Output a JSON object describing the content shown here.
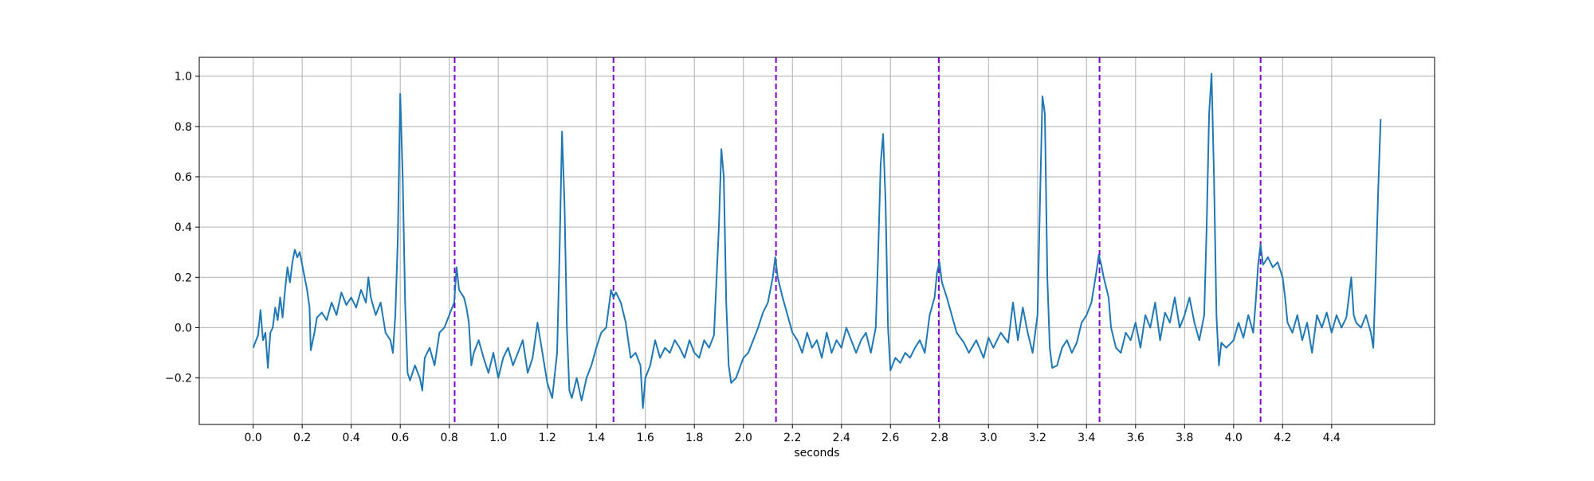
{
  "chart_data": {
    "type": "line",
    "title": "",
    "xlabel": "seconds",
    "ylabel": "",
    "xlim": [
      -0.22,
      4.82
    ],
    "ylim": [
      -0.385,
      1.075
    ],
    "x_ticks": [
      0.0,
      0.2,
      0.4,
      0.6,
      0.8,
      1.0,
      1.2,
      1.4,
      1.6,
      1.8,
      2.0,
      2.2,
      2.4,
      2.6,
      2.8,
      3.0,
      3.2,
      3.4,
      3.6,
      3.8,
      4.0,
      4.2,
      4.4
    ],
    "x_tick_labels": [
      "0.0",
      "0.2",
      "0.4",
      "0.6",
      "0.8",
      "1.0",
      "1.2",
      "1.4",
      "1.6",
      "1.8",
      "2.0",
      "2.2",
      "2.4",
      "2.6",
      "2.8",
      "3.0",
      "3.2",
      "3.4",
      "3.6",
      "3.8",
      "4.0",
      "4.2",
      "4.4"
    ],
    "y_ticks": [
      -0.2,
      0.0,
      0.2,
      0.4,
      0.6,
      0.8,
      1.0
    ],
    "y_tick_labels": [
      "−0.2",
      "0.0",
      "0.2",
      "0.4",
      "0.6",
      "0.8",
      "1.0"
    ],
    "grid": true,
    "legend": "none",
    "series": [
      {
        "color": "#1f77b4",
        "points": [
          [
            0.0,
            -0.08
          ],
          [
            0.02,
            -0.03
          ],
          [
            0.03,
            0.07
          ],
          [
            0.04,
            -0.05
          ],
          [
            0.05,
            -0.02
          ],
          [
            0.06,
            -0.16
          ],
          [
            0.07,
            -0.02
          ],
          [
            0.08,
            0.0
          ],
          [
            0.09,
            0.08
          ],
          [
            0.1,
            0.03
          ],
          [
            0.11,
            0.12
          ],
          [
            0.12,
            0.04
          ],
          [
            0.13,
            0.15
          ],
          [
            0.14,
            0.24
          ],
          [
            0.15,
            0.18
          ],
          [
            0.16,
            0.26
          ],
          [
            0.17,
            0.31
          ],
          [
            0.18,
            0.28
          ],
          [
            0.19,
            0.3
          ],
          [
            0.2,
            0.25
          ],
          [
            0.21,
            0.2
          ],
          [
            0.22,
            0.15
          ],
          [
            0.23,
            0.08
          ],
          [
            0.235,
            -0.09
          ],
          [
            0.25,
            -0.02
          ],
          [
            0.26,
            0.04
          ],
          [
            0.28,
            0.06
          ],
          [
            0.3,
            0.03
          ],
          [
            0.32,
            0.1
          ],
          [
            0.34,
            0.05
          ],
          [
            0.36,
            0.14
          ],
          [
            0.38,
            0.09
          ],
          [
            0.4,
            0.12
          ],
          [
            0.42,
            0.08
          ],
          [
            0.44,
            0.15
          ],
          [
            0.46,
            0.1
          ],
          [
            0.47,
            0.2
          ],
          [
            0.48,
            0.12
          ],
          [
            0.5,
            0.05
          ],
          [
            0.52,
            0.1
          ],
          [
            0.54,
            -0.02
          ],
          [
            0.56,
            -0.05
          ],
          [
            0.57,
            -0.1
          ],
          [
            0.58,
            0.05
          ],
          [
            0.59,
            0.35
          ],
          [
            0.6,
            0.93
          ],
          [
            0.61,
            0.6
          ],
          [
            0.62,
            0.1
          ],
          [
            0.63,
            -0.18
          ],
          [
            0.64,
            -0.21
          ],
          [
            0.66,
            -0.15
          ],
          [
            0.68,
            -0.2
          ],
          [
            0.69,
            -0.25
          ],
          [
            0.7,
            -0.12
          ],
          [
            0.72,
            -0.08
          ],
          [
            0.74,
            -0.15
          ],
          [
            0.76,
            -0.02
          ],
          [
            0.78,
            0.0
          ],
          [
            0.8,
            0.05
          ],
          [
            0.82,
            0.1
          ],
          [
            0.83,
            0.24
          ],
          [
            0.84,
            0.15
          ],
          [
            0.86,
            0.12
          ],
          [
            0.87,
            0.08
          ],
          [
            0.88,
            0.02
          ],
          [
            0.89,
            -0.15
          ],
          [
            0.9,
            -0.1
          ],
          [
            0.92,
            -0.05
          ],
          [
            0.94,
            -0.12
          ],
          [
            0.96,
            -0.18
          ],
          [
            0.98,
            -0.1
          ],
          [
            1.0,
            -0.2
          ],
          [
            1.02,
            -0.12
          ],
          [
            1.04,
            -0.08
          ],
          [
            1.06,
            -0.15
          ],
          [
            1.08,
            -0.1
          ],
          [
            1.1,
            -0.05
          ],
          [
            1.12,
            -0.18
          ],
          [
            1.14,
            -0.12
          ],
          [
            1.16,
            0.02
          ],
          [
            1.18,
            -0.1
          ],
          [
            1.2,
            -0.22
          ],
          [
            1.22,
            -0.28
          ],
          [
            1.24,
            -0.1
          ],
          [
            1.25,
            0.3
          ],
          [
            1.26,
            0.78
          ],
          [
            1.27,
            0.5
          ],
          [
            1.28,
            0.0
          ],
          [
            1.29,
            -0.25
          ],
          [
            1.3,
            -0.28
          ],
          [
            1.32,
            -0.2
          ],
          [
            1.34,
            -0.29
          ],
          [
            1.36,
            -0.2
          ],
          [
            1.38,
            -0.15
          ],
          [
            1.4,
            -0.08
          ],
          [
            1.42,
            -0.02
          ],
          [
            1.44,
            0.0
          ],
          [
            1.46,
            0.15
          ],
          [
            1.47,
            0.12
          ],
          [
            1.48,
            0.14
          ],
          [
            1.5,
            0.1
          ],
          [
            1.52,
            0.02
          ],
          [
            1.54,
            -0.12
          ],
          [
            1.56,
            -0.1
          ],
          [
            1.58,
            -0.15
          ],
          [
            1.59,
            -0.32
          ],
          [
            1.6,
            -0.2
          ],
          [
            1.62,
            -0.15
          ],
          [
            1.64,
            -0.05
          ],
          [
            1.66,
            -0.12
          ],
          [
            1.68,
            -0.08
          ],
          [
            1.7,
            -0.1
          ],
          [
            1.72,
            -0.05
          ],
          [
            1.74,
            -0.08
          ],
          [
            1.76,
            -0.12
          ],
          [
            1.78,
            -0.05
          ],
          [
            1.8,
            -0.1
          ],
          [
            1.82,
            -0.12
          ],
          [
            1.84,
            -0.05
          ],
          [
            1.86,
            -0.08
          ],
          [
            1.88,
            -0.03
          ],
          [
            1.9,
            0.4
          ],
          [
            1.91,
            0.71
          ],
          [
            1.92,
            0.6
          ],
          [
            1.93,
            0.1
          ],
          [
            1.94,
            -0.15
          ],
          [
            1.95,
            -0.22
          ],
          [
            1.97,
            -0.2
          ],
          [
            2.0,
            -0.12
          ],
          [
            2.02,
            -0.1
          ],
          [
            2.04,
            -0.05
          ],
          [
            2.06,
            0.0
          ],
          [
            2.08,
            0.06
          ],
          [
            2.1,
            0.1
          ],
          [
            2.12,
            0.2
          ],
          [
            2.13,
            0.28
          ],
          [
            2.14,
            0.2
          ],
          [
            2.16,
            0.12
          ],
          [
            2.18,
            0.05
          ],
          [
            2.2,
            -0.02
          ],
          [
            2.22,
            -0.05
          ],
          [
            2.24,
            -0.1
          ],
          [
            2.26,
            -0.02
          ],
          [
            2.28,
            -0.08
          ],
          [
            2.3,
            -0.05
          ],
          [
            2.32,
            -0.12
          ],
          [
            2.34,
            -0.02
          ],
          [
            2.36,
            -0.1
          ],
          [
            2.38,
            -0.05
          ],
          [
            2.4,
            -0.08
          ],
          [
            2.42,
            0.0
          ],
          [
            2.44,
            -0.05
          ],
          [
            2.46,
            -0.1
          ],
          [
            2.48,
            -0.05
          ],
          [
            2.5,
            -0.02
          ],
          [
            2.52,
            -0.1
          ],
          [
            2.54,
            0.0
          ],
          [
            2.55,
            0.3
          ],
          [
            2.56,
            0.65
          ],
          [
            2.57,
            0.77
          ],
          [
            2.58,
            0.5
          ],
          [
            2.59,
            0.0
          ],
          [
            2.6,
            -0.17
          ],
          [
            2.62,
            -0.12
          ],
          [
            2.64,
            -0.14
          ],
          [
            2.66,
            -0.1
          ],
          [
            2.68,
            -0.12
          ],
          [
            2.7,
            -0.08
          ],
          [
            2.72,
            -0.05
          ],
          [
            2.74,
            -0.1
          ],
          [
            2.76,
            0.05
          ],
          [
            2.78,
            0.12
          ],
          [
            2.79,
            0.22
          ],
          [
            2.8,
            0.26
          ],
          [
            2.81,
            0.18
          ],
          [
            2.83,
            0.12
          ],
          [
            2.85,
            0.05
          ],
          [
            2.87,
            -0.02
          ],
          [
            2.9,
            -0.06
          ],
          [
            2.92,
            -0.1
          ],
          [
            2.95,
            -0.05
          ],
          [
            2.98,
            -0.12
          ],
          [
            3.0,
            -0.04
          ],
          [
            3.02,
            -0.08
          ],
          [
            3.05,
            -0.02
          ],
          [
            3.08,
            -0.06
          ],
          [
            3.1,
            0.1
          ],
          [
            3.12,
            -0.05
          ],
          [
            3.14,
            0.08
          ],
          [
            3.16,
            -0.02
          ],
          [
            3.18,
            -0.1
          ],
          [
            3.2,
            0.05
          ],
          [
            3.21,
            0.5
          ],
          [
            3.22,
            0.92
          ],
          [
            3.23,
            0.85
          ],
          [
            3.24,
            0.2
          ],
          [
            3.25,
            -0.08
          ],
          [
            3.26,
            -0.16
          ],
          [
            3.28,
            -0.15
          ],
          [
            3.3,
            -0.08
          ],
          [
            3.32,
            -0.05
          ],
          [
            3.34,
            -0.1
          ],
          [
            3.36,
            -0.06
          ],
          [
            3.38,
            0.02
          ],
          [
            3.4,
            0.05
          ],
          [
            3.42,
            0.1
          ],
          [
            3.44,
            0.22
          ],
          [
            3.45,
            0.29
          ],
          [
            3.46,
            0.25
          ],
          [
            3.47,
            0.2
          ],
          [
            3.49,
            0.12
          ],
          [
            3.5,
            0.0
          ],
          [
            3.52,
            -0.08
          ],
          [
            3.54,
            -0.1
          ],
          [
            3.56,
            -0.02
          ],
          [
            3.58,
            -0.05
          ],
          [
            3.6,
            0.02
          ],
          [
            3.62,
            -0.08
          ],
          [
            3.64,
            0.05
          ],
          [
            3.66,
            0.0
          ],
          [
            3.68,
            0.1
          ],
          [
            3.7,
            -0.05
          ],
          [
            3.72,
            0.06
          ],
          [
            3.74,
            0.02
          ],
          [
            3.76,
            0.12
          ],
          [
            3.78,
            0.0
          ],
          [
            3.8,
            0.05
          ],
          [
            3.82,
            0.12
          ],
          [
            3.84,
            0.02
          ],
          [
            3.86,
            -0.05
          ],
          [
            3.88,
            0.05
          ],
          [
            3.89,
            0.4
          ],
          [
            3.9,
            0.85
          ],
          [
            3.91,
            1.01
          ],
          [
            3.92,
            0.6
          ],
          [
            3.93,
            0.05
          ],
          [
            3.94,
            -0.15
          ],
          [
            3.95,
            -0.06
          ],
          [
            3.97,
            -0.08
          ],
          [
            4.0,
            -0.05
          ],
          [
            4.02,
            0.02
          ],
          [
            4.04,
            -0.04
          ],
          [
            4.06,
            0.05
          ],
          [
            4.08,
            -0.02
          ],
          [
            4.09,
            0.1
          ],
          [
            4.1,
            0.25
          ],
          [
            4.11,
            0.33
          ],
          [
            4.12,
            0.25
          ],
          [
            4.14,
            0.28
          ],
          [
            4.16,
            0.24
          ],
          [
            4.18,
            0.26
          ],
          [
            4.2,
            0.2
          ],
          [
            4.21,
            0.12
          ],
          [
            4.22,
            0.02
          ],
          [
            4.24,
            -0.02
          ],
          [
            4.26,
            0.05
          ],
          [
            4.28,
            -0.05
          ],
          [
            4.3,
            0.02
          ],
          [
            4.32,
            -0.1
          ],
          [
            4.34,
            0.05
          ],
          [
            4.36,
            0.0
          ],
          [
            4.38,
            0.06
          ],
          [
            4.4,
            -0.02
          ],
          [
            4.42,
            0.05
          ],
          [
            4.44,
            0.0
          ],
          [
            4.46,
            0.04
          ],
          [
            4.48,
            0.2
          ],
          [
            4.49,
            0.05
          ],
          [
            4.5,
            0.02
          ],
          [
            4.52,
            0.0
          ],
          [
            4.54,
            0.05
          ],
          [
            4.56,
            -0.02
          ],
          [
            4.57,
            -0.08
          ],
          [
            4.58,
            0.22
          ],
          [
            4.59,
            0.55
          ],
          [
            4.6,
            0.83
          ]
        ]
      }
    ],
    "vlines": {
      "color": "#7b00d4",
      "style": "dashed",
      "x": [
        0.822,
        1.47,
        2.133,
        2.797,
        3.453,
        4.11
      ]
    }
  }
}
